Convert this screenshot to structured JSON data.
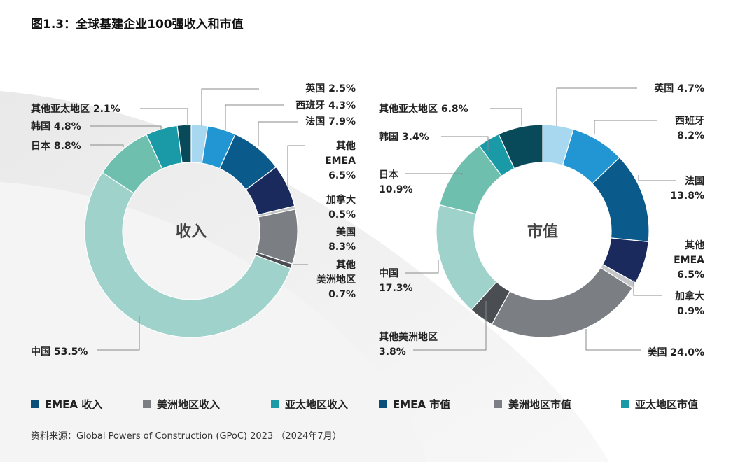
{
  "title": "图1.3：全球基建企业100强收入和市值",
  "source": "资料来源：Global Powers of Construction (GPoC) 2023 （2024年7月）",
  "colors": {
    "uk": "#a8d8f0",
    "spain": "#2196d3",
    "france": "#0a5a8c",
    "other_emea": "#1b2a5c",
    "canada": "#c4c6c8",
    "usa": "#7b7f84",
    "other_americas": "#4a4d52",
    "china": "#9fd2cb",
    "japan": "#6fbfaf",
    "korea": "#1a9aa6",
    "other_apac": "#084a5a"
  },
  "legend": [
    {
      "label": "EMEA 收入",
      "color": "#0a4f7a"
    },
    {
      "label": "美洲地区收入",
      "color": "#7b7f84"
    },
    {
      "label": "亚太地区收入",
      "color": "#1a9aa6"
    },
    {
      "label": "EMEA 市值",
      "color": "#0a4f7a"
    },
    {
      "label": "美洲地区市值",
      "color": "#7b7f84"
    },
    {
      "label": "亚太地区市值",
      "color": "#1a9aa6"
    }
  ],
  "chart_data": [
    {
      "type": "pie",
      "donut": true,
      "center_label": "收入",
      "slices": [
        {
          "key": "uk",
          "label": [
            "英国 2.5%"
          ],
          "value": 2.5
        },
        {
          "key": "spain",
          "label": [
            "西班牙 4.3%"
          ],
          "value": 4.3
        },
        {
          "key": "france",
          "label": [
            "法国 7.9%"
          ],
          "value": 7.9
        },
        {
          "key": "other_emea",
          "label": [
            "其他",
            "EMEA",
            "6.5%"
          ],
          "value": 6.5
        },
        {
          "key": "canada",
          "label": [
            "加拿大",
            "0.5%"
          ],
          "value": 0.5
        },
        {
          "key": "usa",
          "label": [
            "美国",
            "8.3%"
          ],
          "value": 8.3
        },
        {
          "key": "other_americas",
          "label": [
            "其他",
            "美洲地区",
            "0.7%"
          ],
          "value": 0.7
        },
        {
          "key": "china",
          "label": [
            "中国 53.5%"
          ],
          "value": 53.5
        },
        {
          "key": "japan",
          "label": [
            "日本 8.8%"
          ],
          "value": 8.8
        },
        {
          "key": "korea",
          "label": [
            "韩国 4.8%"
          ],
          "value": 4.8
        },
        {
          "key": "other_apac",
          "label": [
            "其他亚太地区 2.1%"
          ],
          "value": 2.1
        }
      ]
    },
    {
      "type": "pie",
      "donut": true,
      "center_label": "市值",
      "slices": [
        {
          "key": "uk",
          "label": [
            "英国 4.7%"
          ],
          "value": 4.7
        },
        {
          "key": "spain",
          "label": [
            "西班牙",
            "8.2%"
          ],
          "value": 8.2
        },
        {
          "key": "france",
          "label": [
            "法国",
            "13.8%"
          ],
          "value": 13.8
        },
        {
          "key": "other_emea",
          "label": [
            "其他",
            "EMEA",
            "6.5%"
          ],
          "value": 6.5
        },
        {
          "key": "canada",
          "label": [
            "加拿大",
            "0.9%"
          ],
          "value": 0.9
        },
        {
          "key": "usa",
          "label": [
            "美国 24.0%"
          ],
          "value": 24.0
        },
        {
          "key": "other_americas",
          "label": [
            "其他美洲地区",
            "3.8%"
          ],
          "value": 3.8
        },
        {
          "key": "china",
          "label": [
            "中国",
            "17.3%"
          ],
          "value": 17.3
        },
        {
          "key": "japan",
          "label": [
            "日本",
            "10.9%"
          ],
          "value": 10.9
        },
        {
          "key": "korea",
          "label": [
            "韩国 3.4%"
          ],
          "value": 3.4
        },
        {
          "key": "other_apac",
          "label": [
            "其他亚太地区 6.8%"
          ],
          "value": 6.8
        }
      ]
    }
  ]
}
